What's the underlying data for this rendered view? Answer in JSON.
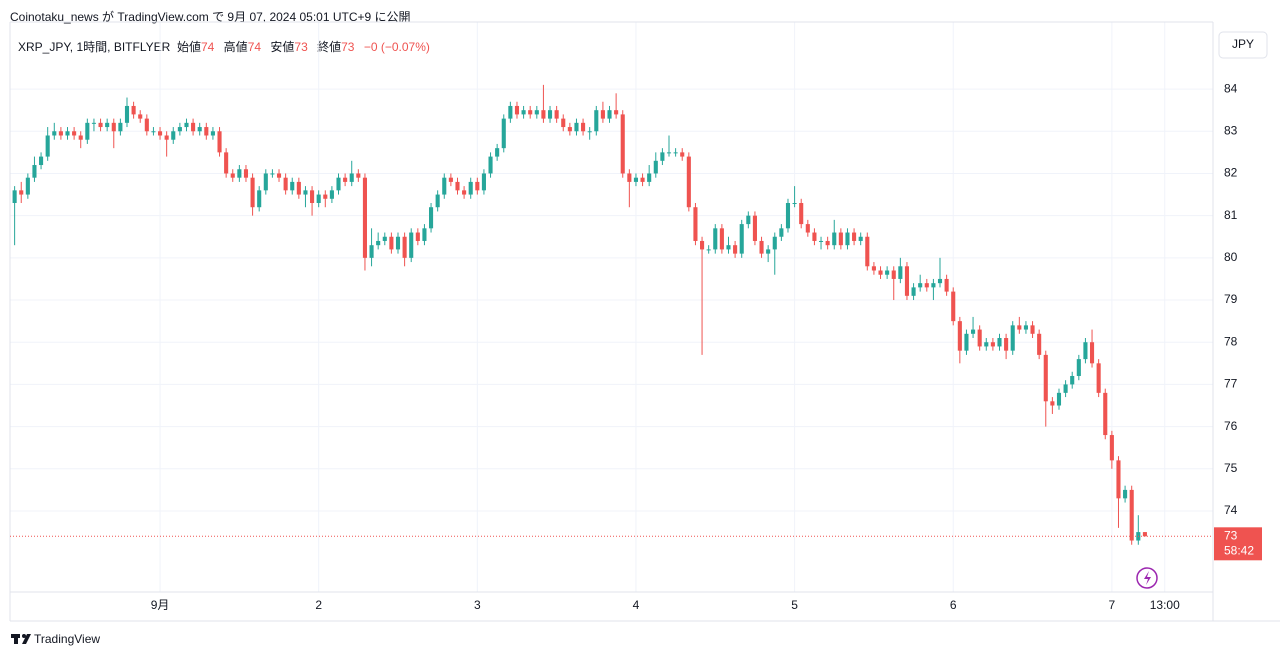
{
  "header": {
    "published": "Coinotaku_news が TradingView.com で 9月 07, 2024 05:01 UTC+9 に公開"
  },
  "legend": {
    "symbol": "XRP_JPY, 1時間, BITFLYER",
    "open_label": "始値",
    "open": "74",
    "high_label": "高値",
    "high": "74",
    "low_label": "安値",
    "low": "73",
    "close_label": "終値",
    "close": "73",
    "change": "−0 (−0.07%)"
  },
  "footer": {
    "brand": "TradingView"
  },
  "chart_data": {
    "type": "candlestick",
    "currency": "JPY",
    "up_color": "#26a69a",
    "down_color": "#ef5350",
    "grid": true,
    "last_price_label": "73",
    "countdown": "58:42",
    "ylim": [
      72.08,
      85.59
    ],
    "yticks": [
      74,
      75,
      76,
      77,
      78,
      79,
      80,
      81,
      82,
      83,
      84
    ],
    "xlim": [
      -0.7,
      181.3
    ],
    "xticks": [
      {
        "value": 22,
        "label": "9月"
      },
      {
        "value": 46,
        "label": "2"
      },
      {
        "value": 70,
        "label": "3"
      },
      {
        "value": 94,
        "label": "4"
      },
      {
        "value": 118,
        "label": "5"
      },
      {
        "value": 142,
        "label": "6"
      },
      {
        "value": 166,
        "label": "7"
      },
      {
        "value": 174,
        "label": "13:00"
      }
    ],
    "open": [
      81.3,
      81.6,
      81.5,
      81.9,
      82.2,
      82.4,
      82.9,
      83.0,
      82.9,
      83.0,
      82.9,
      82.8,
      83.2,
      83.2,
      83.1,
      83.2,
      83.0,
      83.2,
      83.6,
      83.4,
      83.3,
      83.0,
      83.0,
      82.9,
      82.8,
      83.0,
      83.1,
      83.2,
      83.0,
      83.1,
      82.9,
      83.0,
      82.5,
      82.0,
      81.9,
      82.1,
      81.9,
      81.2,
      81.6,
      82.0,
      82.0,
      81.9,
      81.6,
      81.8,
      81.5,
      81.6,
      81.3,
      81.5,
      81.4,
      81.6,
      81.9,
      81.8,
      82.0,
      81.9,
      80.0,
      80.3,
      80.4,
      80.5,
      80.2,
      80.5,
      80.0,
      80.6,
      80.4,
      80.7,
      81.2,
      81.5,
      81.9,
      81.8,
      81.6,
      81.5,
      81.8,
      81.6,
      82.0,
      82.4,
      82.6,
      83.3,
      83.6,
      83.4,
      83.5,
      83.4,
      83.5,
      83.3,
      83.5,
      83.3,
      83.1,
      83.0,
      83.2,
      83.0,
      83.0,
      83.5,
      83.3,
      83.5,
      83.4,
      82.0,
      81.8,
      81.9,
      81.8,
      82.0,
      82.3,
      82.5,
      82.5,
      82.5,
      82.4,
      81.2,
      80.4,
      80.2,
      80.2,
      80.7,
      80.2,
      80.3,
      80.1,
      80.8,
      81.0,
      80.4,
      80.1,
      80.2,
      80.5,
      80.7,
      81.3,
      81.3,
      80.8,
      80.6,
      80.4,
      80.4,
      80.3,
      80.6,
      80.3,
      80.6,
      80.4,
      80.5,
      79.8,
      79.7,
      79.6,
      79.7,
      79.5,
      79.8,
      79.1,
      79.3,
      79.4,
      79.3,
      79.4,
      79.5,
      79.2,
      78.5,
      77.8,
      78.2,
      78.3,
      77.9,
      78.0,
      77.9,
      78.1,
      77.8,
      78.4,
      78.3,
      78.4,
      78.2,
      77.7,
      76.6,
      76.5,
      76.8,
      77.0,
      77.2,
      77.6,
      78.0,
      77.5,
      76.8,
      75.8,
      75.2,
      74.3,
      74.5,
      73.3,
      73.5
    ],
    "high": [
      81.7,
      81.8,
      82.0,
      82.4,
      82.5,
      83.1,
      83.2,
      83.1,
      83.1,
      83.1,
      83.0,
      83.3,
      83.3,
      83.3,
      83.3,
      83.3,
      83.3,
      83.8,
      83.7,
      83.5,
      83.4,
      83.1,
      83.1,
      83.0,
      83.1,
      83.2,
      83.3,
      83.3,
      83.2,
      83.2,
      83.1,
      83.1,
      82.6,
      82.1,
      82.2,
      82.2,
      82.0,
      81.7,
      82.1,
      82.1,
      82.1,
      82.0,
      81.9,
      81.9,
      81.7,
      81.7,
      81.6,
      81.6,
      81.7,
      82.0,
      82.0,
      82.3,
      82.1,
      82.0,
      80.7,
      80.6,
      80.6,
      80.6,
      80.6,
      80.6,
      80.7,
      80.7,
      80.8,
      81.3,
      81.6,
      82.0,
      82.0,
      81.9,
      81.7,
      81.9,
      81.9,
      82.1,
      82.5,
      82.7,
      83.4,
      83.7,
      83.7,
      83.6,
      83.6,
      83.6,
      84.1,
      83.6,
      83.6,
      83.4,
      83.2,
      83.3,
      83.3,
      83.1,
      83.6,
      83.7,
      83.6,
      83.9,
      83.5,
      82.1,
      82.0,
      82.0,
      82.2,
      82.5,
      82.6,
      82.9,
      82.6,
      82.6,
      82.5,
      81.3,
      80.5,
      80.3,
      80.8,
      80.8,
      80.5,
      80.4,
      80.9,
      81.1,
      81.1,
      80.5,
      80.3,
      80.6,
      80.8,
      81.4,
      81.7,
      81.4,
      80.9,
      80.7,
      80.5,
      80.5,
      80.9,
      80.7,
      80.7,
      80.7,
      80.6,
      80.6,
      79.9,
      79.8,
      79.8,
      79.8,
      80.0,
      79.9,
      79.4,
      79.6,
      79.5,
      79.5,
      80.0,
      79.6,
      79.3,
      78.6,
      78.3,
      78.6,
      78.4,
      78.1,
      78.1,
      78.2,
      78.2,
      78.5,
      78.6,
      78.5,
      78.5,
      78.3,
      77.8,
      76.7,
      76.9,
      77.1,
      77.3,
      77.7,
      78.1,
      78.3,
      77.6,
      76.9,
      75.9,
      75.3,
      74.6,
      74.6,
      73.9,
      73.5
    ],
    "low": [
      80.3,
      81.3,
      81.4,
      81.8,
      82.1,
      82.3,
      82.8,
      82.8,
      82.8,
      82.8,
      82.6,
      82.7,
      83.0,
      83.0,
      83.0,
      82.6,
      82.9,
      83.1,
      83.3,
      83.2,
      82.9,
      82.9,
      82.8,
      82.4,
      82.7,
      82.9,
      83.0,
      82.9,
      82.9,
      82.8,
      82.8,
      82.4,
      81.9,
      81.8,
      81.8,
      81.8,
      81.0,
      81.1,
      81.5,
      81.9,
      81.8,
      81.5,
      81.5,
      81.4,
      81.2,
      81.0,
      81.2,
      81.2,
      81.3,
      81.5,
      81.7,
      81.7,
      81.8,
      79.7,
      79.8,
      80.2,
      80.3,
      80.1,
      80.1,
      79.8,
      79.9,
      80.3,
      80.3,
      80.6,
      81.1,
      81.4,
      81.7,
      81.5,
      81.4,
      81.4,
      81.5,
      81.5,
      81.9,
      82.3,
      82.5,
      83.2,
      83.3,
      83.3,
      83.3,
      83.3,
      83.2,
      83.2,
      83.2,
      83.0,
      82.9,
      82.9,
      82.9,
      82.8,
      82.9,
      83.2,
      83.2,
      83.3,
      81.9,
      81.2,
      81.7,
      81.7,
      81.7,
      81.9,
      82.2,
      82.4,
      82.4,
      82.3,
      81.1,
      80.3,
      77.7,
      80.1,
      80.1,
      80.1,
      80.1,
      80.0,
      80.0,
      80.7,
      80.3,
      80.0,
      79.9,
      79.6,
      80.4,
      80.6,
      81.2,
      80.7,
      80.5,
      80.3,
      80.2,
      80.2,
      80.2,
      80.2,
      80.2,
      80.3,
      80.3,
      79.7,
      79.6,
      79.5,
      79.5,
      79.0,
      79.4,
      79.0,
      79.0,
      79.2,
      79.2,
      79.0,
      79.3,
      79.1,
      78.4,
      77.5,
      77.7,
      78.1,
      77.8,
      77.8,
      77.8,
      77.8,
      77.6,
      77.7,
      78.2,
      78.2,
      78.1,
      77.6,
      76.0,
      76.3,
      76.4,
      76.7,
      76.9,
      77.1,
      77.5,
      77.4,
      76.7,
      75.7,
      75.0,
      73.6,
      74.2,
      73.2,
      73.2,
      73.4
    ],
    "close": [
      81.6,
      81.5,
      81.9,
      82.2,
      82.4,
      82.9,
      83.0,
      82.9,
      83.0,
      82.9,
      82.8,
      83.2,
      83.2,
      83.1,
      83.2,
      83.0,
      83.2,
      83.6,
      83.4,
      83.3,
      83.0,
      83.0,
      82.9,
      82.8,
      83.0,
      83.1,
      83.2,
      83.0,
      83.1,
      82.9,
      83.0,
      82.5,
      82.0,
      81.9,
      82.1,
      81.9,
      81.2,
      81.6,
      82.0,
      82.0,
      81.9,
      81.6,
      81.8,
      81.5,
      81.6,
      81.3,
      81.5,
      81.4,
      81.6,
      81.9,
      81.8,
      82.0,
      81.9,
      80.0,
      80.3,
      80.4,
      80.5,
      80.2,
      80.5,
      80.0,
      80.6,
      80.4,
      80.7,
      81.2,
      81.5,
      81.9,
      81.8,
      81.6,
      81.5,
      81.8,
      81.6,
      82.0,
      82.4,
      82.6,
      83.3,
      83.6,
      83.4,
      83.5,
      83.4,
      83.5,
      83.3,
      83.5,
      83.3,
      83.1,
      83.0,
      83.2,
      83.0,
      83.0,
      83.5,
      83.3,
      83.5,
      83.4,
      82.0,
      81.8,
      81.9,
      81.8,
      82.0,
      82.3,
      82.5,
      82.5,
      82.5,
      82.4,
      81.2,
      80.4,
      80.2,
      80.2,
      80.7,
      80.2,
      80.3,
      80.1,
      80.8,
      81.0,
      80.4,
      80.1,
      80.2,
      80.5,
      80.7,
      81.3,
      81.3,
      80.8,
      80.6,
      80.4,
      80.4,
      80.3,
      80.6,
      80.3,
      80.6,
      80.4,
      80.5,
      79.8,
      79.7,
      79.6,
      79.7,
      79.5,
      79.8,
      79.1,
      79.3,
      79.4,
      79.3,
      79.4,
      79.5,
      79.2,
      78.5,
      77.8,
      78.2,
      78.3,
      77.9,
      78.0,
      77.9,
      78.1,
      77.8,
      78.4,
      78.3,
      78.4,
      78.2,
      77.7,
      76.6,
      76.5,
      76.8,
      77.0,
      77.2,
      77.6,
      78.0,
      77.5,
      76.8,
      75.8,
      75.2,
      74.3,
      74.5,
      73.3,
      73.5,
      73.4
    ]
  }
}
